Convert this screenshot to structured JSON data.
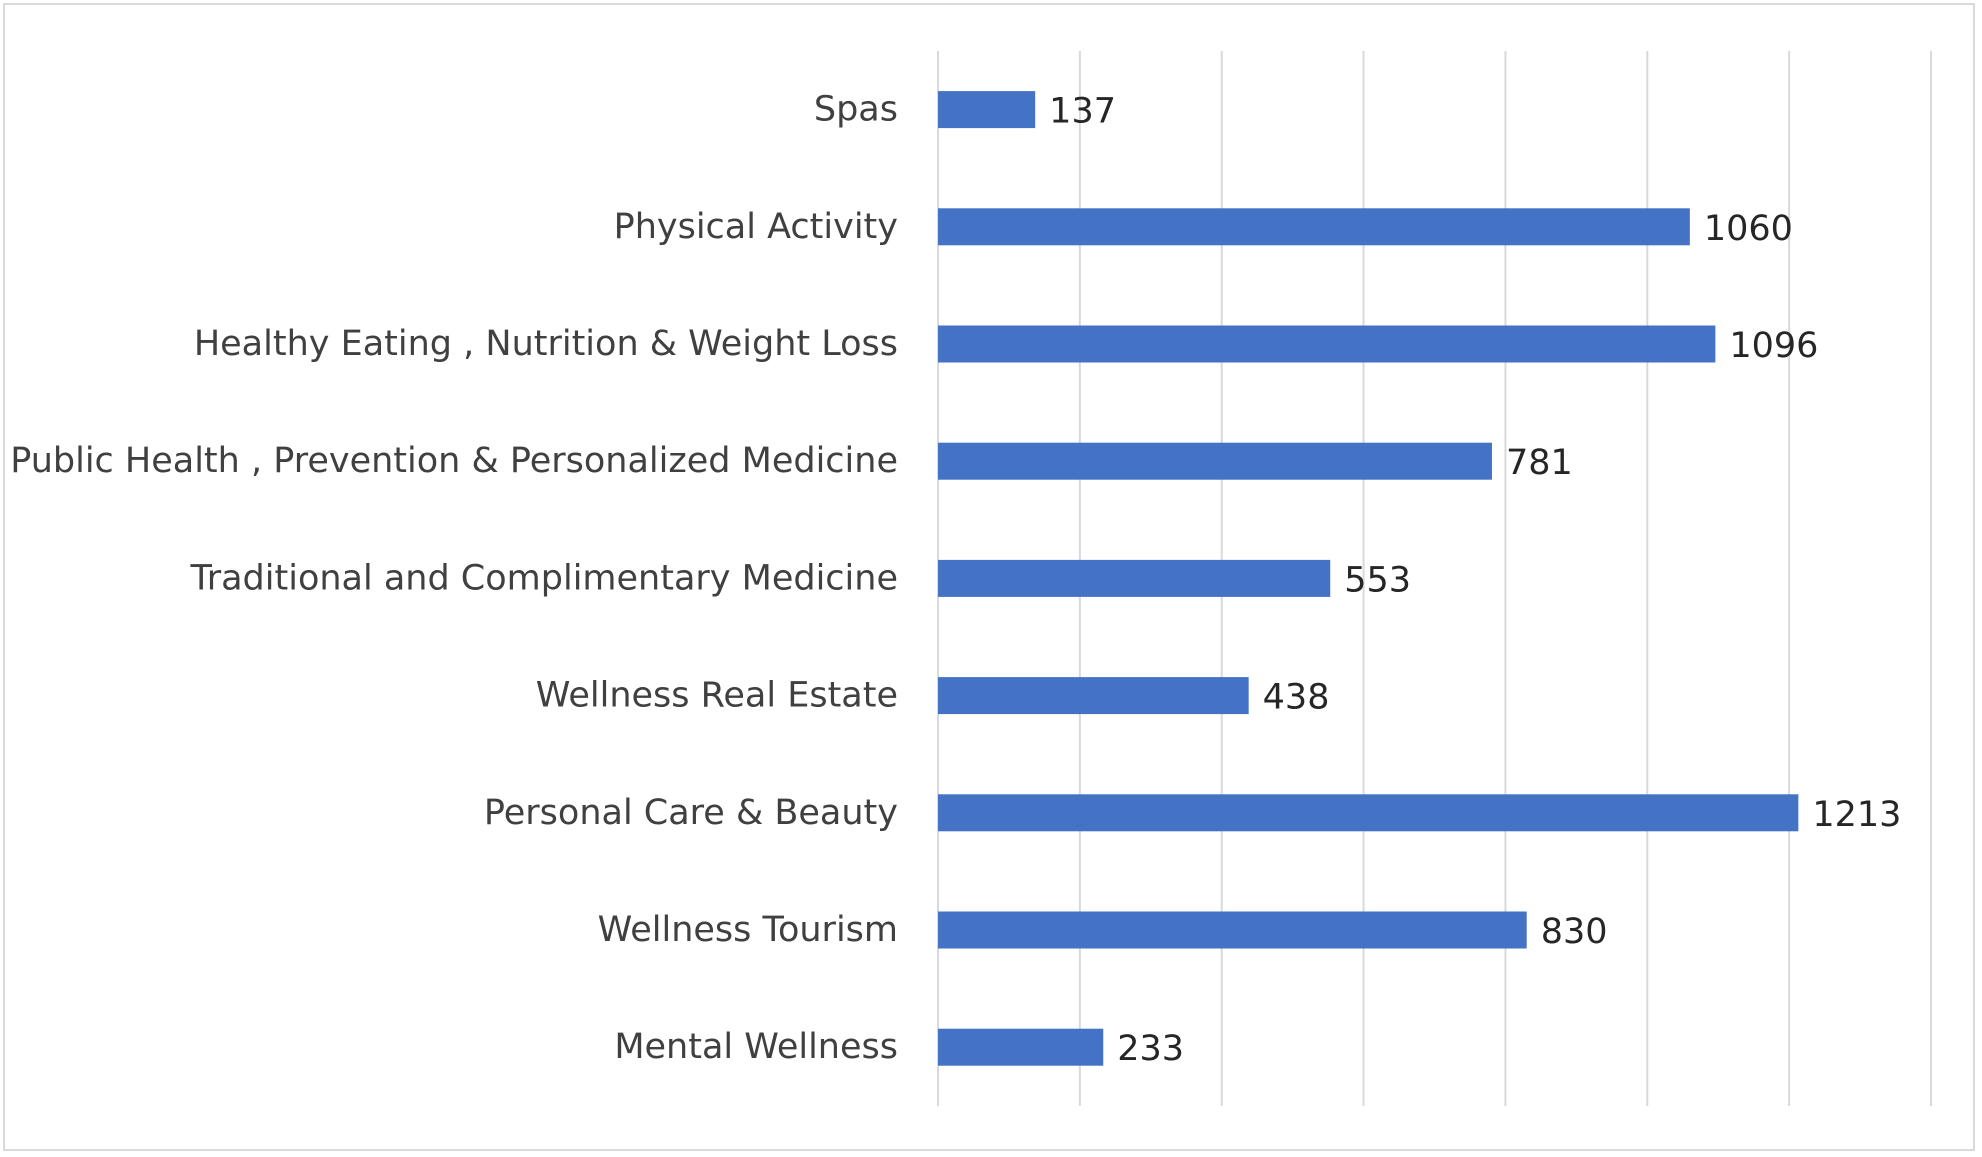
{
  "chart_data": {
    "type": "bar",
    "orientation": "horizontal",
    "categories": [
      "Spas",
      "Physical Activity",
      "Healthy Eating , Nutrition & Weight Loss",
      "Public Health , Prevention & Personalized Medicine",
      "Traditional and Complimentary Medicine",
      "Wellness Real Estate",
      "Personal Care & Beauty",
      "Wellness Tourism",
      "Mental Wellness"
    ],
    "values": [
      137,
      1060,
      1096,
      781,
      553,
      438,
      1213,
      830,
      233
    ],
    "data_labels": [
      "137",
      "1060",
      "1096",
      "781",
      "553",
      "438",
      "1213",
      "830",
      "233"
    ],
    "xlim": [
      0,
      1400
    ],
    "grid": "vertical",
    "gridline_step": 200,
    "bar_color": "#4472c4",
    "title": "",
    "xlabel": "",
    "ylabel": "",
    "legend": "none"
  }
}
